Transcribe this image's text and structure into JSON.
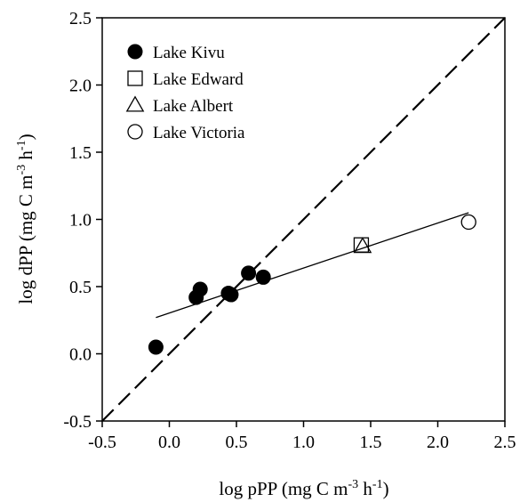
{
  "chart_data": {
    "type": "scatter",
    "title": "",
    "xlabel": {
      "base": "log pPP (mg C m",
      "exp1": "-3",
      "mid": " h",
      "exp2": "-1",
      "end": ")"
    },
    "ylabel": {
      "base": "log dPP (mg C m",
      "exp1": "-3",
      "mid": " h",
      "exp2": "-1",
      "end": ")"
    },
    "xlim": [
      -0.5,
      2.5
    ],
    "ylim": [
      -0.5,
      2.5
    ],
    "xticks": [
      -0.5,
      0.0,
      0.5,
      1.0,
      1.5,
      2.0,
      2.5
    ],
    "yticks": [
      -0.5,
      0.0,
      0.5,
      1.0,
      1.5,
      2.0,
      2.5
    ],
    "xtick_labels": [
      "-0.5",
      "0.0",
      "0.5",
      "1.0",
      "1.5",
      "2.0",
      "2.5"
    ],
    "ytick_labels": [
      "-0.5",
      "0.0",
      "0.5",
      "1.0",
      "1.5",
      "2.0",
      "2.5"
    ],
    "grid": false,
    "legend_position": "top-left",
    "series": [
      {
        "name": "Lake Kivu",
        "marker": "filled-circle",
        "points": [
          [
            -0.1,
            0.05
          ],
          [
            0.2,
            0.42
          ],
          [
            0.23,
            0.48
          ],
          [
            0.44,
            0.45
          ],
          [
            0.46,
            0.44
          ],
          [
            0.59,
            0.6
          ],
          [
            0.7,
            0.57
          ]
        ]
      },
      {
        "name": "Lake Edward",
        "marker": "open-square",
        "points": [
          [
            1.43,
            0.81
          ]
        ]
      },
      {
        "name": "Lake Albert",
        "marker": "open-triangle",
        "points": [
          [
            1.44,
            0.8
          ]
        ]
      },
      {
        "name": "Lake Victoria",
        "marker": "open-circle",
        "points": [
          [
            2.23,
            0.98
          ]
        ]
      }
    ],
    "lines": [
      {
        "kind": "1:1 line",
        "style": "dashed",
        "points": [
          [
            -0.5,
            -0.5
          ],
          [
            2.5,
            2.5
          ]
        ]
      },
      {
        "kind": "regression",
        "style": "solid",
        "points": [
          [
            -0.1,
            0.27
          ],
          [
            2.23,
            1.05
          ]
        ]
      }
    ]
  }
}
